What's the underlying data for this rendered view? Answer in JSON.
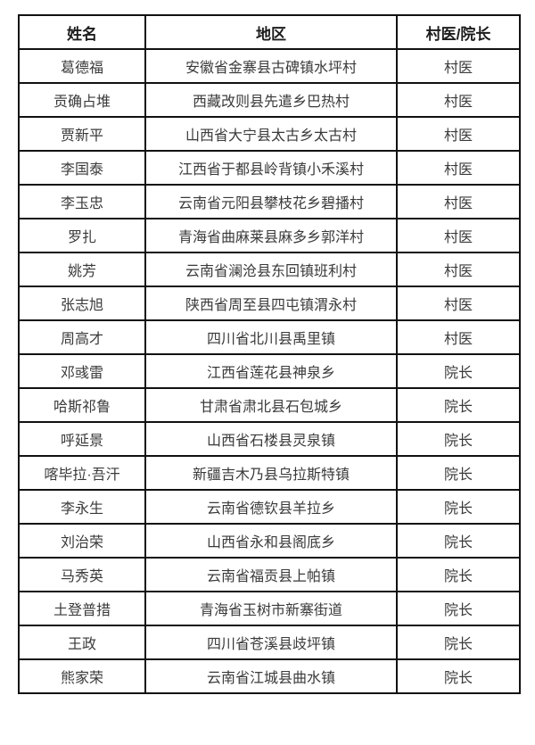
{
  "colors": {
    "background": "#ffffff",
    "border": "#111111",
    "header_text": "#1c1c1c",
    "cell_text": "#3a3a3a"
  },
  "table": {
    "headers": [
      "姓名",
      "地区",
      "村医/院长"
    ],
    "rows": [
      {
        "name": "葛德福",
        "region": "安徽省金寨县古碑镇水坪村",
        "role": "村医"
      },
      {
        "name": "贡确占堆",
        "region": "西藏改则县先遣乡巴热村",
        "role": "村医"
      },
      {
        "name": "贾新平",
        "region": "山西省大宁县太古乡太古村",
        "role": "村医"
      },
      {
        "name": "李国泰",
        "region": "江西省于都县岭背镇小禾溪村",
        "role": "村医"
      },
      {
        "name": "李玉忠",
        "region": "云南省元阳县攀枝花乡碧播村",
        "role": "村医"
      },
      {
        "name": "罗扎",
        "region": "青海省曲麻莱县麻多乡郭洋村",
        "role": "村医"
      },
      {
        "name": "姚芳",
        "region": "云南省澜沧县东回镇班利村",
        "role": "村医"
      },
      {
        "name": "张志旭",
        "region": "陕西省周至县四屯镇渭永村",
        "role": "村医"
      },
      {
        "name": "周高才",
        "region": "四川省北川县禹里镇",
        "role": "村医"
      },
      {
        "name": "邓彧雷",
        "region": "江西省莲花县神泉乡",
        "role": "院长"
      },
      {
        "name": "哈斯祁鲁",
        "region": "甘肃省肃北县石包城乡",
        "role": "院长"
      },
      {
        "name": "呼延景",
        "region": "山西省石楼县灵泉镇",
        "role": "院长"
      },
      {
        "name": "喀毕拉·吾汗",
        "region": "新疆吉木乃县乌拉斯特镇",
        "role": "院长"
      },
      {
        "name": "李永生",
        "region": "云南省德钦县羊拉乡",
        "role": "院长"
      },
      {
        "name": "刘治荣",
        "region": "山西省永和县阁底乡",
        "role": "院长"
      },
      {
        "name": "马秀英",
        "region": "云南省福贡县上帕镇",
        "role": "院长"
      },
      {
        "name": "土登普措",
        "region": "青海省玉树市新寨街道",
        "role": "院长"
      },
      {
        "name": "王政",
        "region": "四川省苍溪县歧坪镇",
        "role": "院长"
      },
      {
        "name": "熊家荣",
        "region": "云南省江城县曲水镇",
        "role": "院长"
      }
    ]
  }
}
